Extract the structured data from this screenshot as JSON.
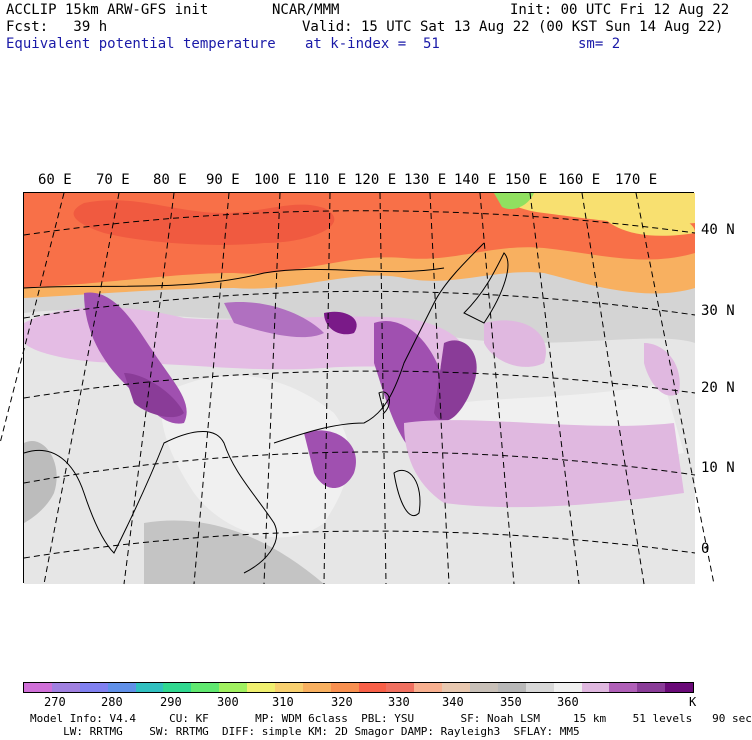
{
  "header": {
    "model": "ACCLIP 15km ARW-GFS init",
    "org": "NCAR/MMM",
    "init": "Init: 00 UTC Fri 12 Aug 22",
    "fcst": "Fcst:   39 h",
    "valid": "Valid: 15 UTC Sat 13 Aug 22 (00 KST Sun 14 Aug 22)",
    "field": "Equivalent potential temperature",
    "kindex": "at k-index =  51",
    "smooth": "sm= 2"
  },
  "map": {
    "longitudes": [
      "60 E",
      "70 E",
      "80 E",
      "90 E",
      "100 E",
      "110 E",
      "120 E",
      "130 E",
      "140 E",
      "150 E",
      "160 E",
      "170 E"
    ],
    "latitudes": [
      "40 N",
      "30 N",
      "20 N",
      "10 N",
      "0"
    ]
  },
  "colorbar": {
    "unit": "K",
    "ticks": [
      "270",
      "280",
      "290",
      "300",
      "310",
      "320",
      "330",
      "340",
      "350",
      "360"
    ],
    "colors": [
      "#d070d8",
      "#a080e0",
      "#8080f0",
      "#6090e8",
      "#30c0c0",
      "#30d890",
      "#60e870",
      "#a0f060",
      "#f0f070",
      "#f8d070",
      "#f8b060",
      "#f89050",
      "#f86048",
      "#f07060",
      "#f8b090",
      "#e8c8b0",
      "#c8c0b8",
      "#b8b8b8",
      "#d8d8d8",
      "#f0f0f0",
      "#e0b8e0",
      "#b060b8",
      "#8a3c98",
      "#6a0a78"
    ]
  },
  "footer": {
    "line1": "Model Info: V4.4     CU: KF       MP: WDM 6class  PBL: YSU       SF: Noah LSM     15 km    51 levels   90 sec",
    "line2": "     LW: RRTMG    SW: RRTMG  DIFF: simple KM: 2D Smagor DAMP: Rayleigh3  SFLAY: MM5"
  }
}
